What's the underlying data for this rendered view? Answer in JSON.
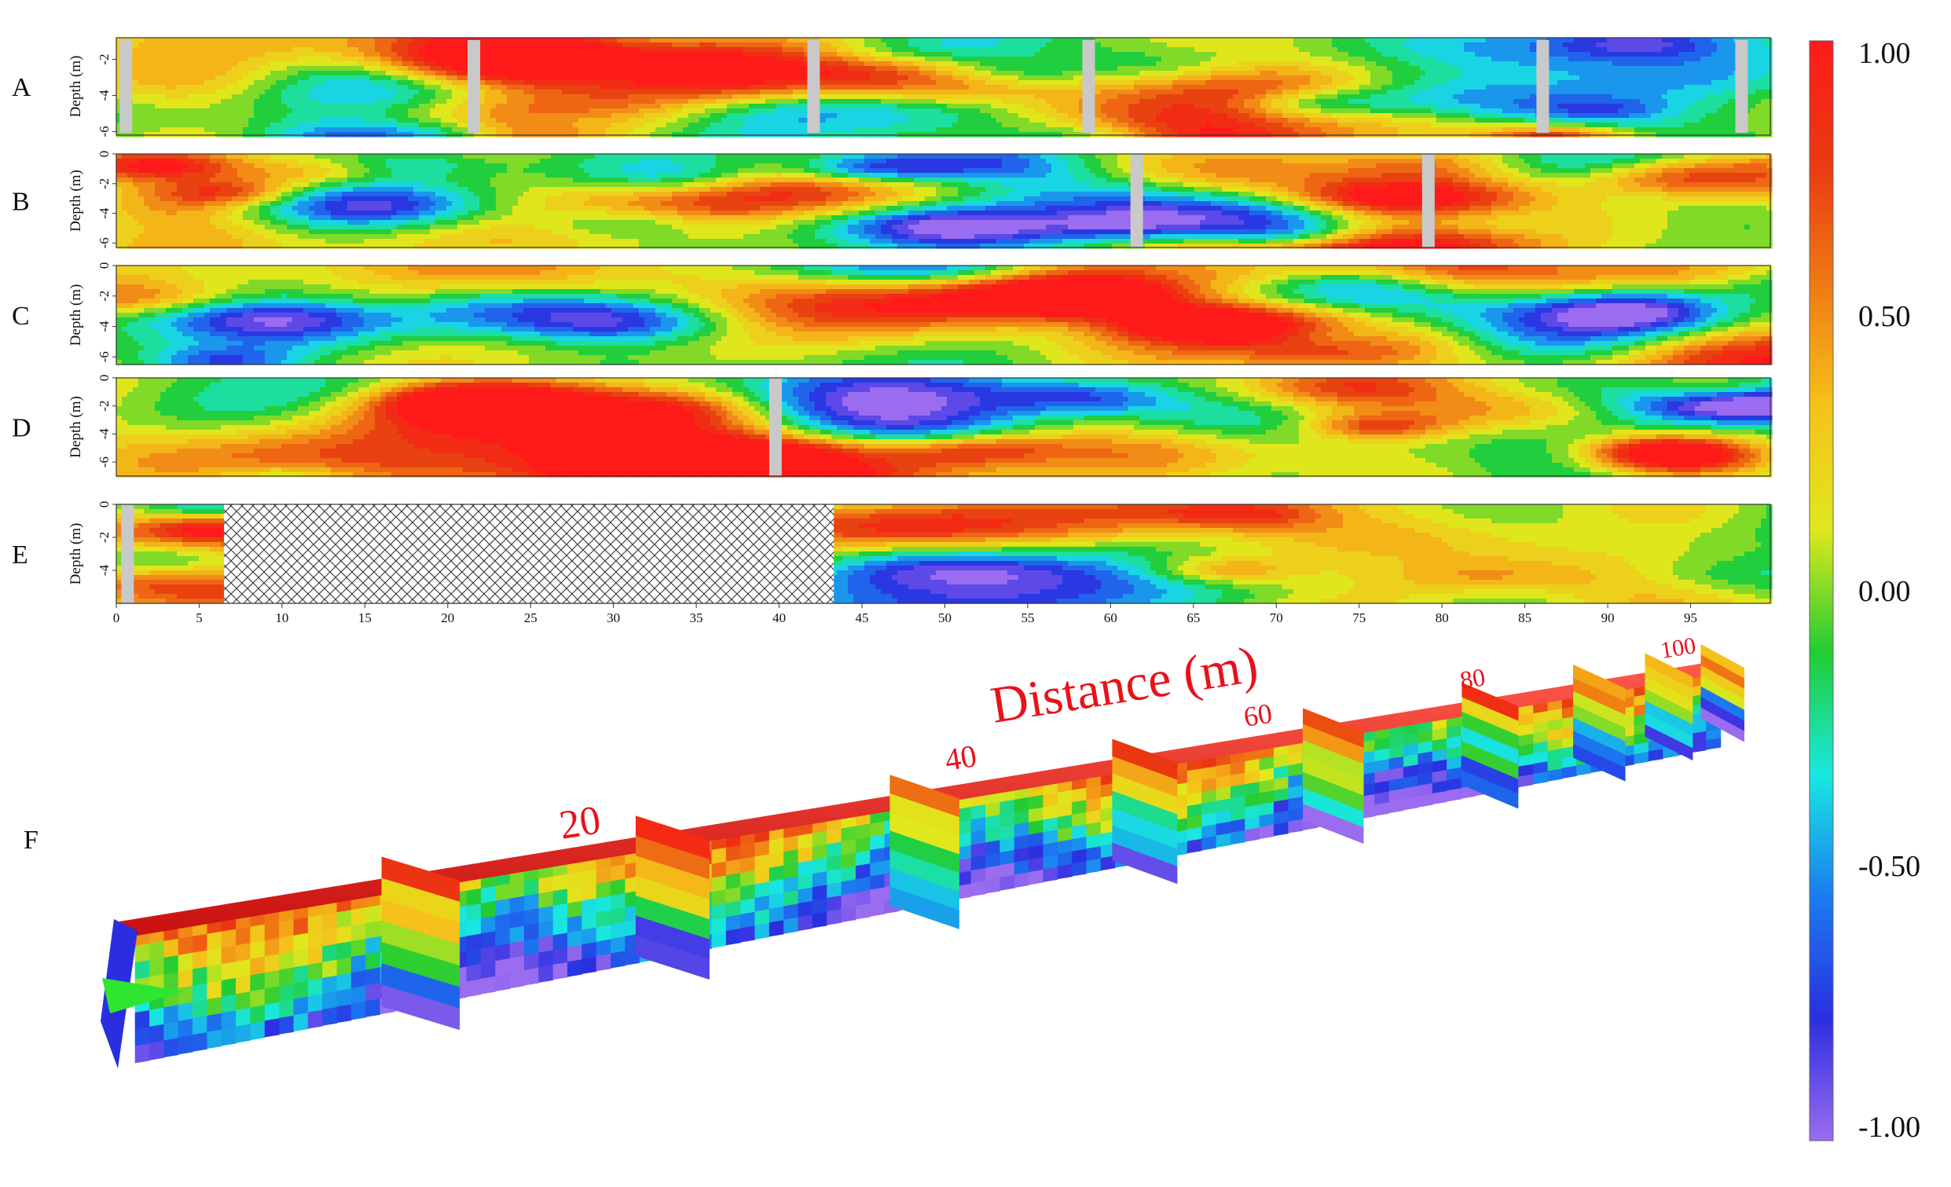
{
  "chart_data": {
    "type": "heatmap",
    "panels": [
      {
        "label": "A",
        "ylabel": "Depth (m)",
        "yticks": [
          -2,
          -4,
          -6
        ],
        "ylim": [
          -6.2,
          -0.8
        ],
        "gaps_x": [
          0.2,
          21.2,
          41.7,
          58.3,
          85.7,
          97.7
        ]
      },
      {
        "label": "B",
        "ylabel": "Depth (m)",
        "yticks": [
          0,
          -2,
          -4,
          -6
        ],
        "ylim": [
          -6.3,
          0
        ],
        "gaps_x": [
          61.2,
          78.8
        ]
      },
      {
        "label": "C",
        "ylabel": "Depth (m)",
        "yticks": [
          0,
          -2,
          -4,
          -6
        ],
        "ylim": [
          -6.5,
          0
        ],
        "gaps_x": []
      },
      {
        "label": "D",
        "ylabel": "Depth (m)",
        "yticks": [
          0,
          -2,
          -4,
          -6
        ],
        "ylim": [
          -7,
          0
        ],
        "gaps_x": [
          39.4
        ]
      },
      {
        "label": "E",
        "ylabel": "Depth (m)",
        "yticks": [
          0,
          -2,
          -4
        ],
        "ylim": [
          -6,
          0
        ],
        "gaps_x": [
          0.3
        ],
        "masked_x": [
          6.5,
          43.3
        ]
      }
    ],
    "xticks": [
      0,
      5,
      10,
      15,
      20,
      25,
      30,
      35,
      40,
      45,
      50,
      55,
      60,
      65,
      70,
      75,
      80,
      85,
      90,
      95
    ],
    "xlim": [
      0,
      99
    ],
    "colorbar": {
      "ticks": [
        "1.00",
        "0.50",
        "0.00",
        "-0.50",
        "-1.00"
      ],
      "values": [
        1,
        0.5,
        0,
        -0.5,
        -1
      ],
      "colors": [
        "#9a6cf0",
        "#2b2ee0",
        "#1a7cf0",
        "#19e8e0",
        "#22cc33",
        "#dfe81c",
        "#f5c21a",
        "#f07a14",
        "#e83a10",
        "#ff1a1a"
      ]
    },
    "panel_3d": {
      "label": "F",
      "axis_title": "Distance (m)",
      "axis_ticks": [
        "20",
        "40",
        "60",
        "80",
        "100"
      ]
    }
  }
}
